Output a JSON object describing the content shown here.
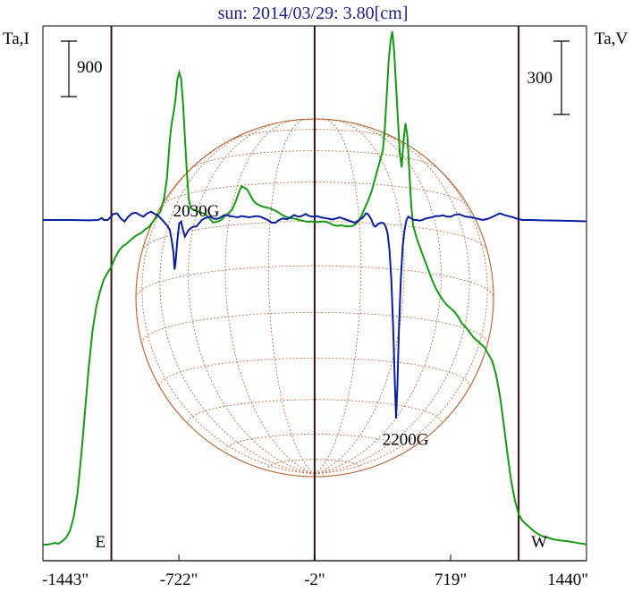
{
  "chart_data": {
    "type": "line",
    "title": "sun: 2014/03/29: 3.80[cm]",
    "left_axis_label": "Ta,I",
    "right_axis_label": "Ta,V",
    "left_scale_bar": "900",
    "right_scale_bar": "300",
    "x_tick_labels": [
      "-1443\"",
      "-722\"",
      "-2\"",
      "719\"",
      "1440\""
    ],
    "x_ticks": [
      -1443,
      -722,
      -2,
      719,
      1440
    ],
    "x_range": [
      -1443,
      1440
    ],
    "limb_labels": [
      {
        "text": "E",
        "x": -1080
      },
      {
        "text": "W",
        "x": 1080
      }
    ],
    "vertical_lines": [
      -1080,
      -2,
      1080
    ],
    "annotations": [
      {
        "text": "2030G",
        "x": -610,
        "y": 0.1
      },
      {
        "text": "2200G",
        "x": 500,
        "y": -0.59
      }
    ],
    "series": [
      {
        "color": "#159a15",
        "points": [
          [
            -1443,
            0.0
          ],
          [
            -1420,
            0.0
          ],
          [
            -1400,
            0.002
          ],
          [
            -1380,
            0.005
          ],
          [
            -1360,
            0.003
          ],
          [
            -1340,
            0.01
          ],
          [
            -1320,
            0.02
          ],
          [
            -1300,
            0.04
          ],
          [
            -1280,
            0.08
          ],
          [
            -1260,
            0.15
          ],
          [
            -1240,
            0.26
          ],
          [
            -1220,
            0.39
          ],
          [
            -1200,
            0.52
          ],
          [
            -1180,
            0.63
          ],
          [
            -1160,
            0.7
          ],
          [
            -1140,
            0.745
          ],
          [
            -1120,
            0.78
          ],
          [
            -1100,
            0.8
          ],
          [
            -1080,
            0.818
          ],
          [
            -1060,
            0.845
          ],
          [
            -1040,
            0.865
          ],
          [
            -1020,
            0.878
          ],
          [
            -1000,
            0.885
          ],
          [
            -980,
            0.895
          ],
          [
            -960,
            0.905
          ],
          [
            -940,
            0.912
          ],
          [
            -920,
            0.918
          ],
          [
            -900,
            0.928
          ],
          [
            -880,
            0.935
          ],
          [
            -860,
            0.95
          ],
          [
            -840,
            0.965
          ],
          [
            -820,
            0.98
          ],
          [
            -800,
            1.02
          ],
          [
            -785,
            1.08
          ],
          [
            -770,
            1.19
          ],
          [
            -760,
            1.24
          ],
          [
            -750,
            1.27
          ],
          [
            -740,
            1.31
          ],
          [
            -730,
            1.37
          ],
          [
            -720,
            1.39
          ],
          [
            -710,
            1.37
          ],
          [
            -700,
            1.3
          ],
          [
            -690,
            1.2
          ],
          [
            -680,
            1.1
          ],
          [
            -670,
            1.02
          ],
          [
            -660,
            0.99
          ],
          [
            -640,
            0.985
          ],
          [
            -620,
            0.98
          ],
          [
            -600,
            0.976
          ],
          [
            -580,
            0.972
          ],
          [
            -560,
            0.96
          ],
          [
            -540,
            0.948
          ],
          [
            -520,
            0.95
          ],
          [
            -500,
            0.955
          ],
          [
            -480,
            0.965
          ],
          [
            -460,
            0.975
          ],
          [
            -440,
            0.985
          ],
          [
            -420,
            1.01
          ],
          [
            -405,
            1.035
          ],
          [
            -390,
            1.055
          ],
          [
            -375,
            1.05
          ],
          [
            -360,
            1.045
          ],
          [
            -345,
            1.03
          ],
          [
            -330,
            1.015
          ],
          [
            -315,
            1.005
          ],
          [
            -300,
            1.0
          ],
          [
            -280,
            0.995
          ],
          [
            -260,
            0.992
          ],
          [
            -240,
            0.99
          ],
          [
            -220,
            0.985
          ],
          [
            -200,
            0.98
          ],
          [
            -180,
            0.972
          ],
          [
            -160,
            0.966
          ],
          [
            -140,
            0.962
          ],
          [
            -120,
            0.96
          ],
          [
            -100,
            0.958
          ],
          [
            -80,
            0.955
          ],
          [
            -60,
            0.952
          ],
          [
            -40,
            0.95
          ],
          [
            -20,
            0.951
          ],
          [
            0,
            0.95
          ],
          [
            20,
            0.949
          ],
          [
            40,
            0.951
          ],
          [
            60,
            0.95
          ],
          [
            80,
            0.945
          ],
          [
            100,
            0.94
          ],
          [
            120,
            0.938
          ],
          [
            140,
            0.94
          ],
          [
            160,
            0.937
          ],
          [
            180,
            0.936
          ],
          [
            200,
            0.938
          ],
          [
            220,
            0.945
          ],
          [
            240,
            0.96
          ],
          [
            260,
            0.985
          ],
          [
            280,
            1.01
          ],
          [
            300,
            1.04
          ],
          [
            320,
            1.08
          ],
          [
            340,
            1.12
          ],
          [
            360,
            1.16
          ],
          [
            370,
            1.22
          ],
          [
            380,
            1.32
          ],
          [
            390,
            1.42
          ],
          [
            400,
            1.48
          ],
          [
            410,
            1.51
          ],
          [
            420,
            1.45
          ],
          [
            430,
            1.35
          ],
          [
            440,
            1.25
          ],
          [
            450,
            1.15
          ],
          [
            460,
            1.11
          ],
          [
            470,
            1.19
          ],
          [
            480,
            1.24
          ],
          [
            490,
            1.2
          ],
          [
            500,
            1.1
          ],
          [
            510,
            1.0
          ],
          [
            520,
            0.94
          ],
          [
            540,
            0.9
          ],
          [
            560,
            0.87
          ],
          [
            580,
            0.84
          ],
          [
            600,
            0.81
          ],
          [
            620,
            0.78
          ],
          [
            640,
            0.755
          ],
          [
            660,
            0.735
          ],
          [
            680,
            0.718
          ],
          [
            700,
            0.705
          ],
          [
            720,
            0.695
          ],
          [
            740,
            0.685
          ],
          [
            760,
            0.67
          ],
          [
            780,
            0.65
          ],
          [
            800,
            0.64
          ],
          [
            820,
            0.625
          ],
          [
            840,
            0.61
          ],
          [
            860,
            0.6
          ],
          [
            880,
            0.59
          ],
          [
            900,
            0.58
          ],
          [
            920,
            0.56
          ],
          [
            940,
            0.54
          ],
          [
            960,
            0.5
          ],
          [
            980,
            0.44
          ],
          [
            1000,
            0.36
          ],
          [
            1020,
            0.27
          ],
          [
            1040,
            0.19
          ],
          [
            1060,
            0.13
          ],
          [
            1080,
            0.09
          ],
          [
            1100,
            0.07
          ],
          [
            1120,
            0.06
          ],
          [
            1140,
            0.05
          ],
          [
            1160,
            0.04
          ],
          [
            1180,
            0.032
          ],
          [
            1200,
            0.026
          ],
          [
            1220,
            0.022
          ],
          [
            1240,
            0.02
          ],
          [
            1260,
            0.016
          ],
          [
            1280,
            0.014
          ],
          [
            1300,
            0.012
          ],
          [
            1320,
            0.011
          ],
          [
            1340,
            0.01
          ],
          [
            1360,
            0.008
          ],
          [
            1380,
            0.006
          ],
          [
            1400,
            0.004
          ],
          [
            1420,
            0.003
          ],
          [
            1440,
            0.0
          ]
        ]
      },
      {
        "color": "#0a1ea0",
        "points": [
          [
            -1443,
            0.0
          ],
          [
            -1300,
            0.0
          ],
          [
            -1200,
            -0.001
          ],
          [
            -1150,
            0.0
          ],
          [
            -1130,
            0.006
          ],
          [
            -1120,
            0.0
          ],
          [
            -1100,
            0.0
          ],
          [
            -1090,
            0.005
          ],
          [
            -1070,
            0.018
          ],
          [
            -1050,
            0.02
          ],
          [
            -1030,
            0.005
          ],
          [
            -1010,
            -0.005
          ],
          [
            -990,
            0.01
          ],
          [
            -970,
            0.02
          ],
          [
            -950,
            0.022
          ],
          [
            -930,
            0.015
          ],
          [
            -910,
            0.01
          ],
          [
            -890,
            0.02
          ],
          [
            -870,
            0.025
          ],
          [
            -850,
            0.018
          ],
          [
            -830,
            0.012
          ],
          [
            -810,
            0.0
          ],
          [
            -795,
            -0.01
          ],
          [
            -780,
            -0.02
          ],
          [
            -770,
            -0.03
          ],
          [
            -760,
            -0.06
          ],
          [
            -750,
            -0.1
          ],
          [
            -745,
            -0.15
          ],
          [
            -740,
            -0.13
          ],
          [
            -730,
            -0.06
          ],
          [
            -720,
            -0.01
          ],
          [
            -710,
            -0.005
          ],
          [
            -700,
            -0.03
          ],
          [
            -690,
            -0.05
          ],
          [
            -680,
            -0.04
          ],
          [
            -670,
            -0.03
          ],
          [
            -660,
            -0.025
          ],
          [
            -645,
            -0.02
          ],
          [
            -630,
            -0.02
          ],
          [
            -615,
            -0.01
          ],
          [
            -600,
            0.0
          ],
          [
            -585,
            0.005
          ],
          [
            -570,
            0.008
          ],
          [
            -555,
            0.01
          ],
          [
            -540,
            0.005
          ],
          [
            -525,
            0.003
          ],
          [
            -510,
            0.005
          ],
          [
            -495,
            0.01
          ],
          [
            -480,
            0.015
          ],
          [
            -465,
            0.014
          ],
          [
            -450,
            0.012
          ],
          [
            -430,
            0.01
          ],
          [
            -410,
            0.008
          ],
          [
            -390,
            0.012
          ],
          [
            -370,
            0.01
          ],
          [
            -350,
            0.008
          ],
          [
            -330,
            0.01
          ],
          [
            -310,
            0.012
          ],
          [
            -290,
            0.01
          ],
          [
            -270,
            0.005
          ],
          [
            -250,
            0.0
          ],
          [
            -230,
            -0.008
          ],
          [
            -210,
            -0.008
          ],
          [
            -190,
            0.0
          ],
          [
            -170,
            0.005
          ],
          [
            -150,
            0.002
          ],
          [
            -130,
            0.008
          ],
          [
            -110,
            0.015
          ],
          [
            -90,
            0.01
          ],
          [
            -70,
            0.012
          ],
          [
            -50,
            0.018
          ],
          [
            -30,
            0.012
          ],
          [
            -10,
            0.01
          ],
          [
            10,
            0.012
          ],
          [
            30,
            0.008
          ],
          [
            50,
            0.006
          ],
          [
            70,
            0.004
          ],
          [
            90,
            0.002
          ],
          [
            110,
            0.004
          ],
          [
            130,
            0.008
          ],
          [
            150,
            0.004
          ],
          [
            170,
            0.0
          ],
          [
            190,
            -0.004
          ],
          [
            210,
            -0.008
          ],
          [
            230,
            -0.002
          ],
          [
            250,
            0.006
          ],
          [
            260,
            0.012
          ],
          [
            270,
            0.02
          ],
          [
            280,
            0.018
          ],
          [
            290,
            0.01
          ],
          [
            300,
            0.0
          ],
          [
            310,
            -0.015
          ],
          [
            320,
            -0.02
          ],
          [
            330,
            -0.015
          ],
          [
            340,
            -0.01
          ],
          [
            355,
            -0.008
          ],
          [
            365,
            -0.01
          ],
          [
            375,
            -0.02
          ],
          [
            385,
            -0.04
          ],
          [
            395,
            -0.09
          ],
          [
            405,
            -0.18
          ],
          [
            415,
            -0.33
          ],
          [
            423,
            -0.48
          ],
          [
            430,
            -0.6
          ],
          [
            437,
            -0.5
          ],
          [
            445,
            -0.33
          ],
          [
            455,
            -0.18
          ],
          [
            465,
            -0.08
          ],
          [
            475,
            -0.03
          ],
          [
            485,
            0.0
          ],
          [
            495,
            0.01
          ],
          [
            510,
            0.005
          ],
          [
            525,
            0.0
          ],
          [
            540,
            0.0
          ],
          [
            555,
            -0.002
          ],
          [
            570,
            0.0
          ],
          [
            585,
            0.004
          ],
          [
            600,
            0.006
          ],
          [
            620,
            0.008
          ],
          [
            640,
            0.012
          ],
          [
            660,
            0.012
          ],
          [
            680,
            0.014
          ],
          [
            700,
            0.01
          ],
          [
            720,
            0.01
          ],
          [
            740,
            0.015
          ],
          [
            760,
            0.018
          ],
          [
            780,
            0.014
          ],
          [
            800,
            0.01
          ],
          [
            830,
            0.008
          ],
          [
            860,
            0.004
          ],
          [
            890,
            0.0
          ],
          [
            920,
            0.004
          ],
          [
            950,
            0.012
          ],
          [
            980,
            0.02
          ],
          [
            1010,
            0.014
          ],
          [
            1040,
            0.01
          ],
          [
            1070,
            0.004
          ],
          [
            1100,
            0.0
          ],
          [
            1150,
            0.0
          ],
          [
            1200,
            -0.001
          ],
          [
            1300,
            -0.002
          ],
          [
            1440,
            -0.004
          ]
        ]
      }
    ]
  }
}
